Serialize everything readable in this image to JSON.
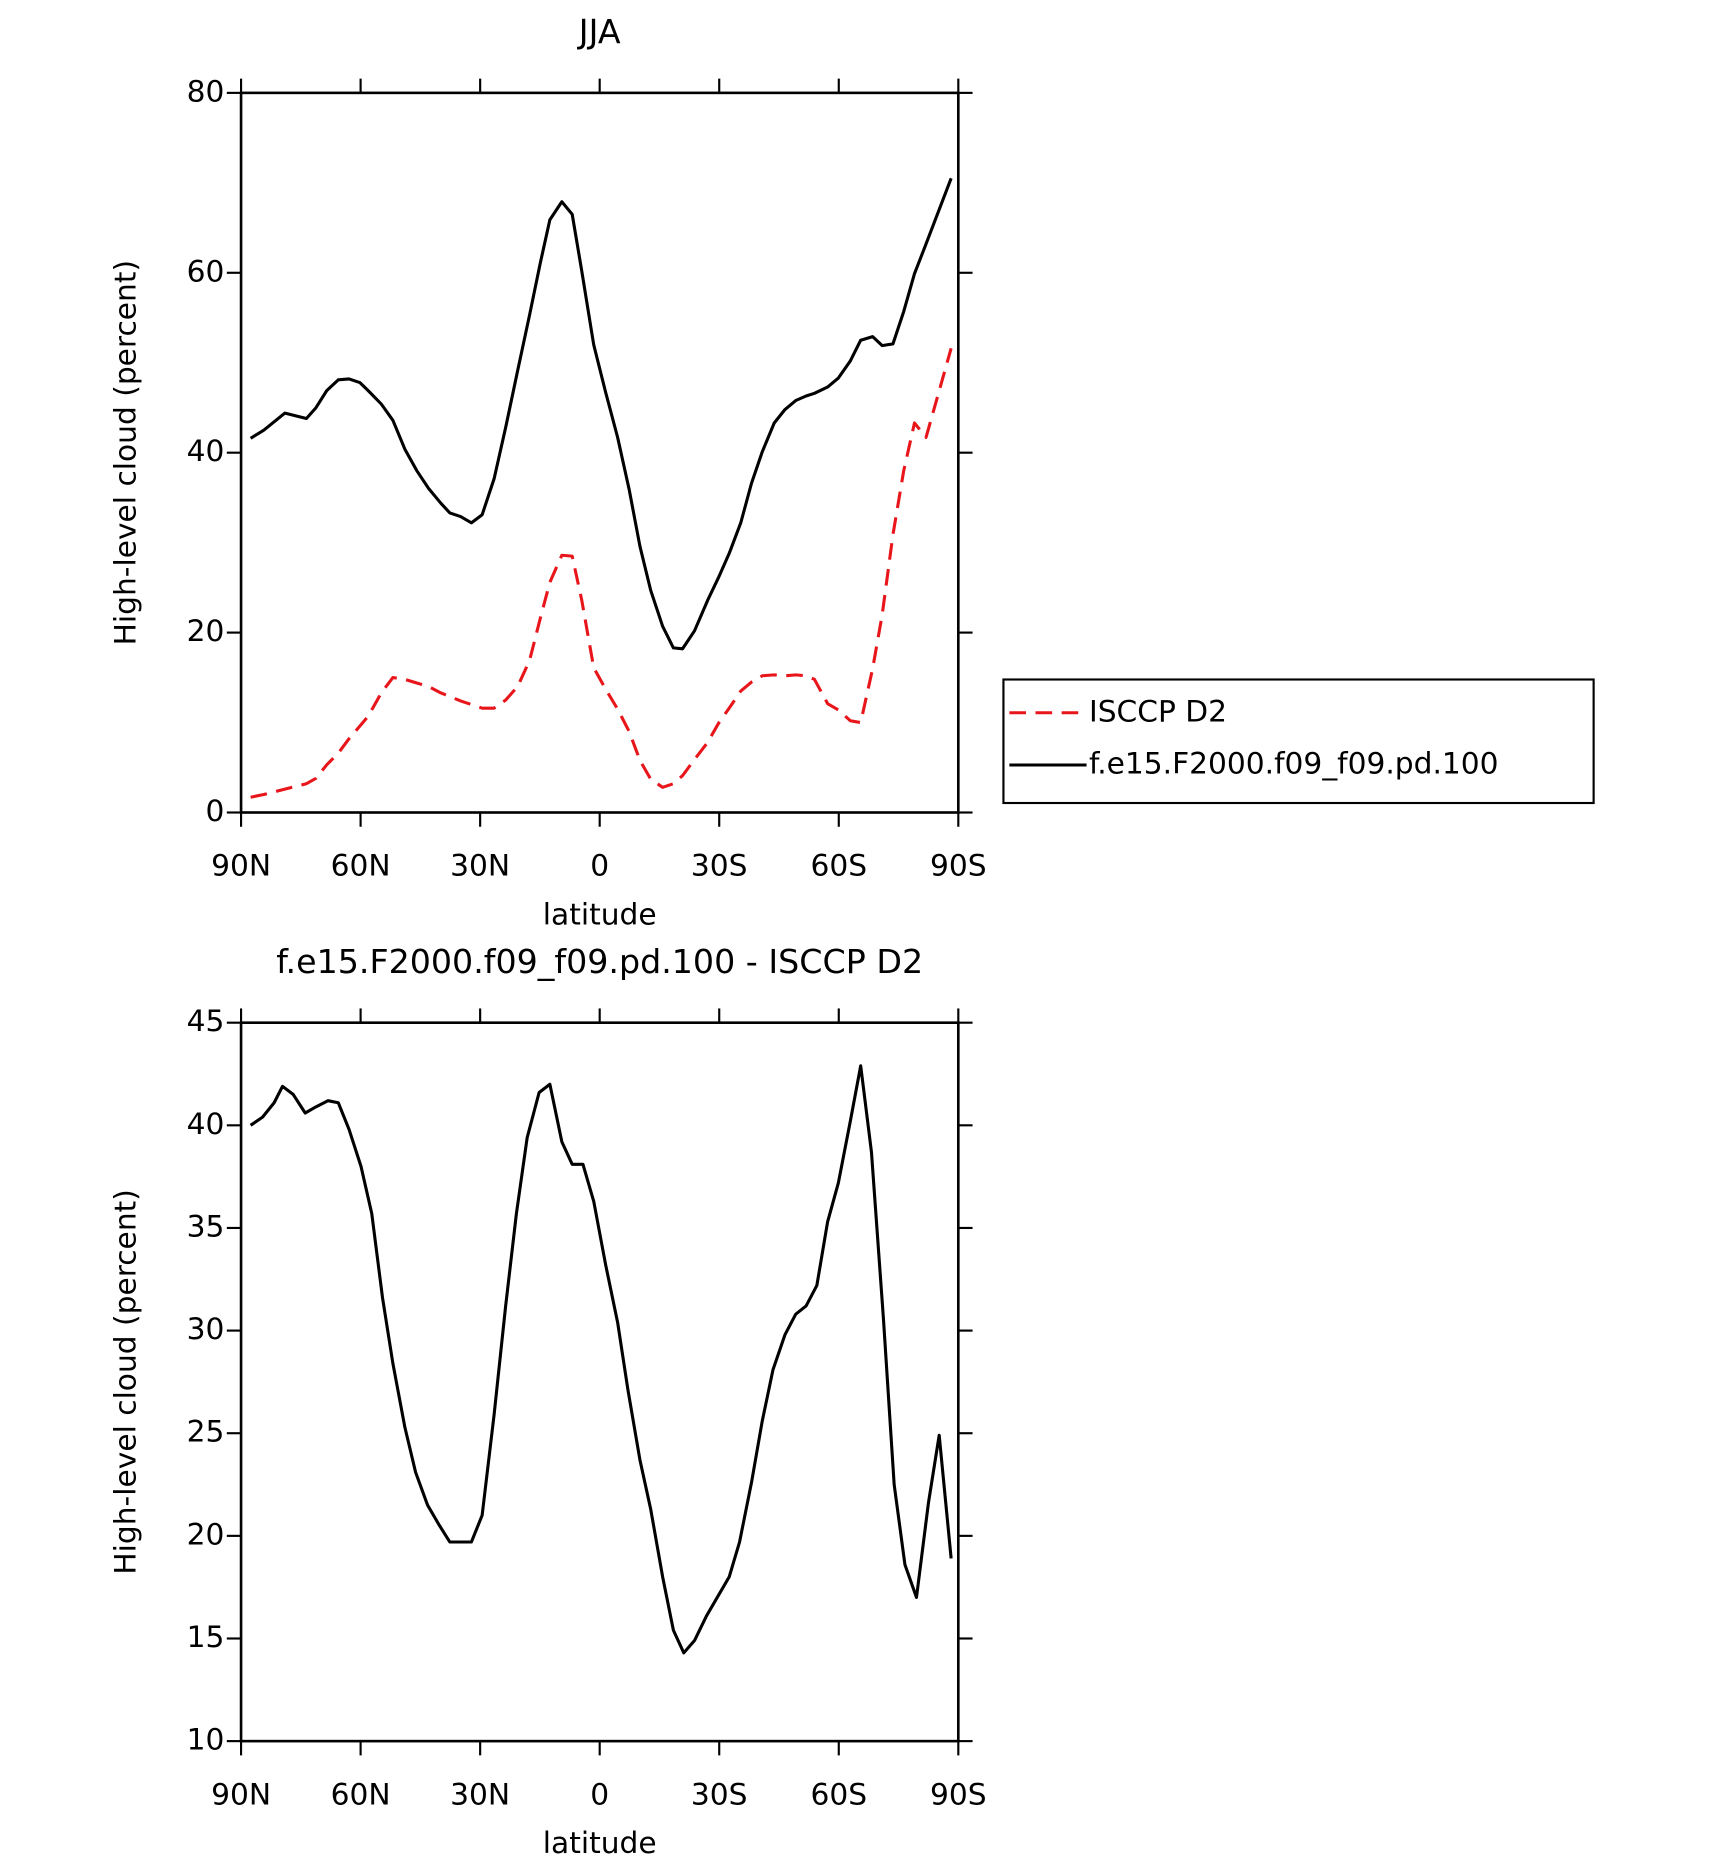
{
  "chart_data": [
    {
      "type": "line",
      "title": "JJA",
      "xlabel": "latitude",
      "ylabel": "High-level cloud (percent)",
      "x": [
        87.6,
        84.3,
        79.0,
        73.6,
        71.2,
        68.5,
        65.6,
        62.9,
        60.2,
        58.1,
        54.8,
        51.9,
        48.9,
        45.9,
        42.9,
        39.9,
        37.6,
        34.9,
        32.2,
        29.5,
        26.5,
        23.6,
        20.6,
        17.6,
        14.9,
        12.5,
        9.5,
        6.9,
        4.5,
        1.5,
        -1.5,
        -4.5,
        -7.4,
        -10.1,
        -12.8,
        -15.8,
        -18.5,
        -20.8,
        -23.8,
        -27.1,
        -29.8,
        -32.5,
        -35.4,
        -38.1,
        -40.8,
        -43.8,
        -46.5,
        -49.2,
        -51.8,
        -53.9,
        -57.2,
        -59.9,
        -62.9,
        -65.5,
        -68.5,
        -70.9,
        -73.6,
        -76.3,
        -79.0,
        -81.9,
        -88.2
      ],
      "series": [
        {
          "name": "ISCCP D2",
          "color": "#e8161b",
          "style": "dashed",
          "values": [
            1.7,
            2.0,
            2.6,
            3.2,
            3.8,
            5.3,
            6.6,
            8.2,
            9.6,
            10.7,
            13.3,
            15.0,
            14.8,
            14.4,
            14.0,
            13.3,
            12.9,
            12.4,
            12.0,
            11.6,
            11.6,
            12.5,
            14.0,
            16.9,
            21.6,
            25.6,
            28.6,
            28.5,
            23.6,
            16.1,
            13.7,
            11.5,
            9.0,
            5.8,
            3.7,
            2.8,
            3.2,
            4.1,
            5.9,
            7.8,
            9.9,
            11.6,
            13.5,
            14.5,
            15.2,
            15.3,
            15.2,
            15.3,
            15.2,
            14.8,
            12.1,
            11.4,
            10.2,
            10.0,
            16.0,
            22.0,
            30.9,
            38.0,
            43.3,
            41.7,
            51.6
          ]
        },
        {
          "name": "f.e15.F2000.f09_f09.pd.100",
          "color": "#000000",
          "style": "solid",
          "values": [
            41.6,
            42.5,
            44.4,
            43.8,
            45.0,
            46.9,
            48.1,
            48.2,
            47.8,
            46.9,
            45.4,
            43.6,
            40.4,
            38.0,
            36.0,
            34.4,
            33.3,
            32.9,
            32.2,
            33.1,
            37.1,
            42.8,
            49.1,
            55.3,
            61.1,
            65.9,
            67.9,
            66.5,
            60.2,
            52.0,
            46.7,
            41.7,
            35.9,
            29.6,
            24.7,
            20.7,
            18.3,
            18.2,
            20.2,
            23.6,
            26.1,
            28.8,
            32.2,
            36.6,
            40.1,
            43.3,
            44.8,
            45.8,
            46.3,
            46.6,
            47.3,
            48.3,
            50.2,
            52.5,
            52.9,
            51.9,
            52.1,
            55.7,
            59.9,
            63.2,
            70.5
          ]
        }
      ],
      "xlim": [
        90,
        -90
      ],
      "xticks": [
        {
          "value": 90,
          "label": "90N"
        },
        {
          "value": 60,
          "label": "60N"
        },
        {
          "value": 30,
          "label": "30N"
        },
        0,
        {
          "value": -30,
          "label": "30S"
        },
        {
          "value": -60,
          "label": "60S"
        },
        {
          "value": -90,
          "label": "90S"
        }
      ],
      "ylim": [
        0,
        80
      ],
      "yticks": [
        0,
        20,
        40,
        60,
        80
      ],
      "legend": "right"
    },
    {
      "type": "line",
      "title": "f.e15.F2000.f09_f09.pd.100 - ISCCP D2",
      "xlabel": "latitude",
      "ylabel": "High-level cloud (percent)",
      "x": [
        87.6,
        84.6,
        81.7,
        79.6,
        76.9,
        73.9,
        71.2,
        68.2,
        65.6,
        62.9,
        59.9,
        57.2,
        54.5,
        51.9,
        48.9,
        46.2,
        43.2,
        40.2,
        37.6,
        34.9,
        32.2,
        29.5,
        26.5,
        23.6,
        20.9,
        18.2,
        15.2,
        12.5,
        9.5,
        6.9,
        4.2,
        1.5,
        -1.5,
        -4.5,
        -7.1,
        -10.1,
        -12.8,
        -15.8,
        -18.5,
        -21.1,
        -23.8,
        -26.8,
        -29.5,
        -32.5,
        -35.1,
        -38.1,
        -40.8,
        -43.5,
        -46.5,
        -49.2,
        -51.8,
        -54.5,
        -57.2,
        -59.9,
        -62.9,
        -65.5,
        -68.2,
        -71.2,
        -73.9,
        -76.6,
        -79.5,
        -82.5,
        -85.2,
        -88.2
      ],
      "values": [
        40.0,
        40.4,
        41.1,
        41.9,
        41.5,
        40.6,
        40.9,
        41.2,
        41.1,
        39.8,
        38.0,
        35.7,
        31.6,
        28.4,
        25.3,
        23.1,
        21.5,
        20.5,
        19.7,
        19.7,
        19.7,
        21.0,
        25.9,
        31.2,
        35.7,
        39.4,
        41.6,
        42.0,
        39.2,
        38.1,
        38.1,
        36.3,
        33.2,
        30.4,
        27.1,
        23.7,
        21.3,
        18.0,
        15.4,
        14.3,
        14.9,
        16.1,
        17.0,
        18.0,
        19.7,
        22.6,
        25.6,
        28.1,
        29.8,
        30.8,
        31.2,
        32.2,
        35.3,
        37.2,
        40.2,
        42.9,
        38.7,
        30.6,
        22.5,
        18.6,
        17.0,
        21.6,
        24.9,
        18.9
      ],
      "color": "#000000",
      "xlim": [
        90,
        -90
      ],
      "xticks": [
        {
          "value": 90,
          "label": "90N"
        },
        {
          "value": 60,
          "label": "60N"
        },
        {
          "value": 30,
          "label": "30N"
        },
        0,
        {
          "value": -30,
          "label": "30S"
        },
        {
          "value": -60,
          "label": "60S"
        },
        {
          "value": -90,
          "label": "90S"
        }
      ],
      "ylim": [
        10,
        45
      ],
      "yticks": [
        10,
        15,
        20,
        25,
        30,
        35,
        40,
        45
      ]
    }
  ]
}
